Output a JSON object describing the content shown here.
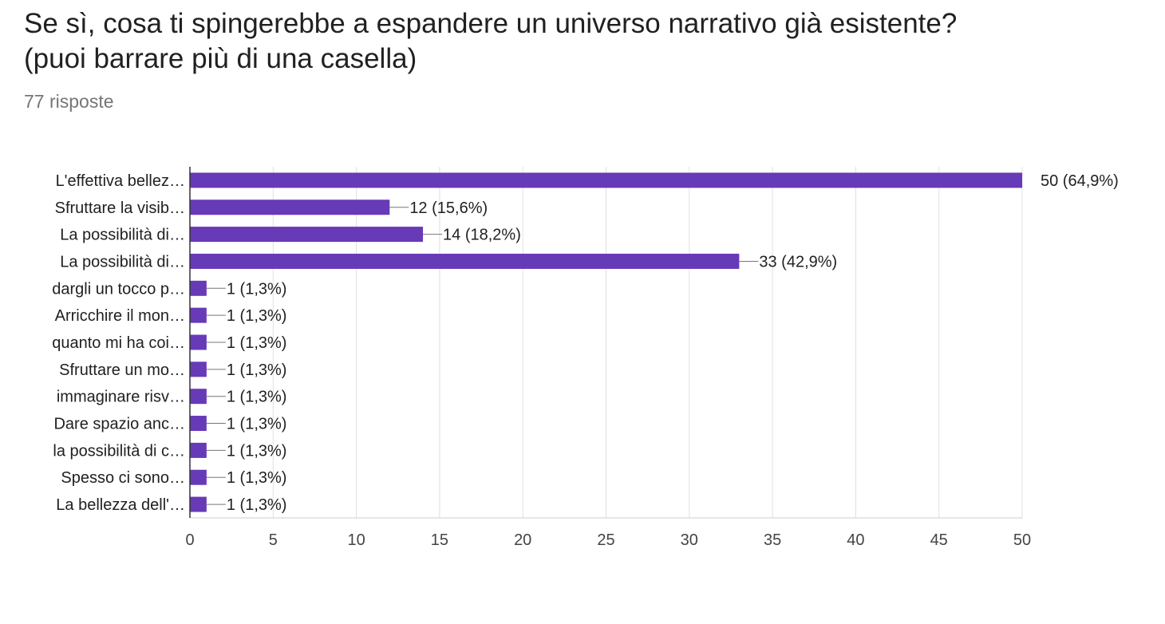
{
  "title_line1": "Se sì, cosa ti spingerebbe a espandere un universo narrativo già esistente?",
  "title_line2": "(puoi barrare più di una casella)",
  "responses": "77 risposte",
  "chart_data": {
    "type": "bar",
    "orientation": "horizontal",
    "categories": [
      "L'effettiva bellez…",
      "Sfruttare la visib…",
      "La possibilità di…",
      "La possibilità di…",
      "dargli un tocco p…",
      "Arricchire il mon…",
      "quanto mi ha coi…",
      "Sfruttare un mo…",
      "immaginare risv…",
      "Dare spazio anc…",
      "la possibilità di c…",
      "Spesso ci sono…",
      "La bellezza dell'…"
    ],
    "values": [
      50,
      12,
      14,
      33,
      1,
      1,
      1,
      1,
      1,
      1,
      1,
      1,
      1
    ],
    "value_labels": [
      "50 (64,9%)",
      "12 (15,6%)",
      "14 (18,2%)",
      "33 (42,9%)",
      "1 (1,3%)",
      "1 (1,3%)",
      "1 (1,3%)",
      "1 (1,3%)",
      "1 (1,3%)",
      "1 (1,3%)",
      "1 (1,3%)",
      "1 (1,3%)",
      "1 (1,3%)"
    ],
    "xlim": [
      0,
      50
    ],
    "xticks": [
      0,
      5,
      10,
      15,
      20,
      25,
      30,
      35,
      40,
      45,
      50
    ],
    "grid": true,
    "bar_color": "#673ab7"
  }
}
